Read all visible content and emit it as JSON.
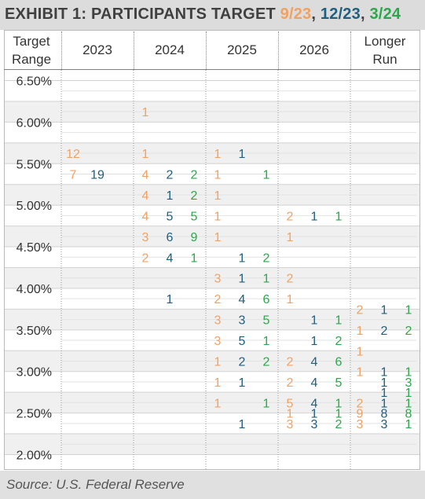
{
  "title": {
    "text": "EXHIBIT 1: PARTICIPANTS TARGET ",
    "separator": ", ",
    "series": [
      {
        "label": "9/23",
        "color": "#f0a262"
      },
      {
        "label": "12/23",
        "color": "#1f5f7f"
      },
      {
        "label": "3/24",
        "color": "#2aa84a"
      }
    ]
  },
  "columns": [
    {
      "line1": "Target",
      "line2": "Range"
    },
    {
      "label": "2023"
    },
    {
      "label": "2024"
    },
    {
      "label": "2025"
    },
    {
      "label": "2026"
    },
    {
      "line1": "Longer",
      "line2": "Run"
    }
  ],
  "source": "Source: U.S. Federal Reserve",
  "chart_data": {
    "type": "table",
    "row_labels": [
      "6.50%",
      "6.00%",
      "5.50%",
      "5.00%",
      "4.50%",
      "4.00%",
      "3.50%",
      "3.00%",
      "2.50%",
      "2.00%"
    ],
    "series_order": [
      "9/23",
      "12/23",
      "3/24"
    ],
    "columns": [
      "2023",
      "2024",
      "2025",
      "2026",
      "Longer Run"
    ],
    "cells": [
      {
        "rate": 6.125,
        "col": "2024",
        "counts": [
          1,
          null,
          null
        ]
      },
      {
        "rate": 5.625,
        "col": "2023",
        "counts": [
          12,
          null,
          null
        ]
      },
      {
        "rate": 5.625,
        "col": "2024",
        "counts": [
          1,
          null,
          null
        ]
      },
      {
        "rate": 5.625,
        "col": "2025",
        "counts": [
          1,
          1,
          null
        ]
      },
      {
        "rate": 5.375,
        "col": "2023",
        "counts": [
          7,
          19,
          null
        ]
      },
      {
        "rate": 5.375,
        "col": "2024",
        "counts": [
          4,
          2,
          2
        ]
      },
      {
        "rate": 5.375,
        "col": "2025",
        "counts": [
          1,
          null,
          1
        ]
      },
      {
        "rate": 5.125,
        "col": "2024",
        "counts": [
          4,
          1,
          2
        ]
      },
      {
        "rate": 5.125,
        "col": "2025",
        "counts": [
          1,
          null,
          null
        ]
      },
      {
        "rate": 4.875,
        "col": "2024",
        "counts": [
          4,
          5,
          5
        ]
      },
      {
        "rate": 4.875,
        "col": "2025",
        "counts": [
          1,
          null,
          null
        ]
      },
      {
        "rate": 4.875,
        "col": "2026",
        "counts": [
          2,
          1,
          1
        ]
      },
      {
        "rate": 4.625,
        "col": "2024",
        "counts": [
          3,
          6,
          9
        ]
      },
      {
        "rate": 4.625,
        "col": "2025",
        "counts": [
          1,
          null,
          null
        ]
      },
      {
        "rate": 4.625,
        "col": "2026",
        "counts": [
          1,
          null,
          null
        ]
      },
      {
        "rate": 4.375,
        "col": "2024",
        "counts": [
          2,
          4,
          1
        ]
      },
      {
        "rate": 4.375,
        "col": "2025",
        "counts": [
          null,
          1,
          2
        ]
      },
      {
        "rate": 4.125,
        "col": "2025",
        "counts": [
          3,
          1,
          1
        ]
      },
      {
        "rate": 4.125,
        "col": "2026",
        "counts": [
          2,
          null,
          null
        ]
      },
      {
        "rate": 3.875,
        "col": "2024",
        "counts": [
          null,
          1,
          null
        ]
      },
      {
        "rate": 3.875,
        "col": "2025",
        "counts": [
          2,
          4,
          6
        ]
      },
      {
        "rate": 3.875,
        "col": "2026",
        "counts": [
          1,
          null,
          null
        ]
      },
      {
        "rate": 3.75,
        "col": "Longer Run",
        "counts": [
          2,
          1,
          1
        ]
      },
      {
        "rate": 3.625,
        "col": "2025",
        "counts": [
          3,
          3,
          5
        ]
      },
      {
        "rate": 3.625,
        "col": "2026",
        "counts": [
          null,
          1,
          1
        ]
      },
      {
        "rate": 3.5,
        "col": "Longer Run",
        "counts": [
          1,
          2,
          2
        ]
      },
      {
        "rate": 3.375,
        "col": "2025",
        "counts": [
          3,
          5,
          1
        ]
      },
      {
        "rate": 3.375,
        "col": "2026",
        "counts": [
          null,
          1,
          2
        ]
      },
      {
        "rate": 3.25,
        "col": "Longer Run",
        "counts": [
          1,
          null,
          null
        ]
      },
      {
        "rate": 3.125,
        "col": "2025",
        "counts": [
          1,
          2,
          2
        ]
      },
      {
        "rate": 3.125,
        "col": "2026",
        "counts": [
          2,
          4,
          6
        ]
      },
      {
        "rate": 3.0,
        "col": "Longer Run",
        "counts": [
          1,
          1,
          1
        ]
      },
      {
        "rate": 2.875,
        "col": "2025",
        "counts": [
          1,
          1,
          null
        ]
      },
      {
        "rate": 2.875,
        "col": "2026",
        "counts": [
          2,
          4,
          5
        ]
      },
      {
        "rate": 2.875,
        "col": "Longer Run",
        "counts": [
          null,
          1,
          3
        ]
      },
      {
        "rate": 2.75,
        "col": "Longer Run",
        "counts": [
          null,
          1,
          1
        ]
      },
      {
        "rate": 2.625,
        "col": "2025",
        "counts": [
          1,
          null,
          1
        ]
      },
      {
        "rate": 2.625,
        "col": "2026",
        "counts": [
          5,
          4,
          1
        ]
      },
      {
        "rate": 2.625,
        "col": "Longer Run",
        "counts": [
          2,
          1,
          1
        ]
      },
      {
        "rate": 2.5,
        "col": "2026",
        "counts": [
          1,
          1,
          1
        ]
      },
      {
        "rate": 2.5,
        "col": "Longer Run",
        "counts": [
          9,
          8,
          8
        ]
      },
      {
        "rate": 2.375,
        "col": "2025",
        "counts": [
          null,
          1,
          null
        ]
      },
      {
        "rate": 2.375,
        "col": "2026",
        "counts": [
          3,
          3,
          2
        ]
      },
      {
        "rate": 2.375,
        "col": "Longer Run",
        "counts": [
          3,
          3,
          1
        ]
      }
    ]
  }
}
